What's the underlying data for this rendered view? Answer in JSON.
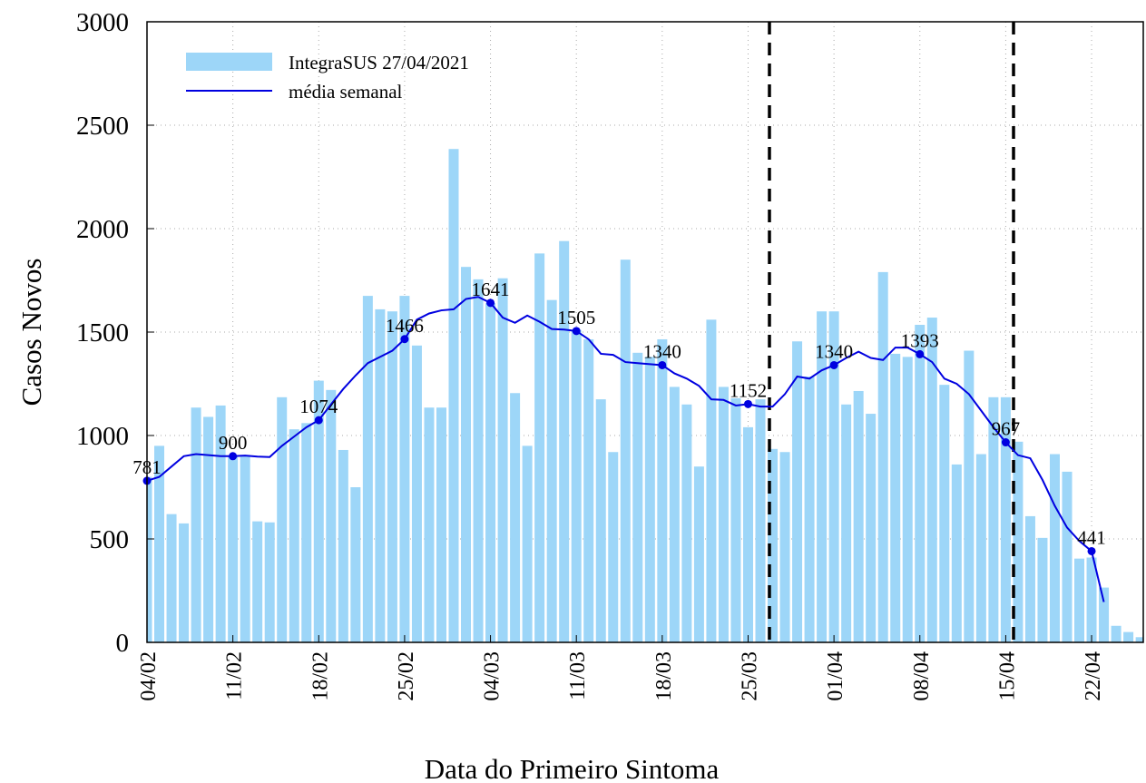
{
  "chart_data": {
    "type": "bar-line",
    "xlabel": "Data do Primeiro Sintoma",
    "ylabel": "Casos Novos",
    "categories": [
      "04/02",
      null,
      null,
      null,
      null,
      null,
      null,
      "11/02",
      null,
      null,
      null,
      null,
      null,
      null,
      "18/02",
      null,
      null,
      null,
      null,
      null,
      null,
      "25/02",
      null,
      null,
      null,
      null,
      null,
      null,
      "04/03",
      null,
      null,
      null,
      null,
      null,
      null,
      "11/03",
      null,
      null,
      null,
      null,
      null,
      null,
      "18/03",
      null,
      null,
      null,
      null,
      null,
      null,
      "25/03",
      null,
      null,
      null,
      null,
      null,
      null,
      "01/04",
      null,
      null,
      null,
      null,
      null,
      null,
      "08/04",
      null,
      null,
      null,
      null,
      null,
      null,
      "15/04",
      null,
      null,
      null,
      null,
      null,
      null,
      "22/04",
      null,
      null,
      null,
      null
    ],
    "series": [
      {
        "name": "IntegraSUS 27/04/2021",
        "kind": "bar",
        "color": "#9dd6f8",
        "values": [
          800,
          950,
          620,
          575,
          1135,
          1090,
          1145,
          900,
          905,
          585,
          580,
          1185,
          1030,
          1060,
          1265,
          1220,
          930,
          750,
          1675,
          1610,
          1600,
          1675,
          1435,
          1135,
          1135,
          2385,
          1815,
          1755,
          1640,
          1760,
          1205,
          950,
          1880,
          1655,
          1940,
          1510,
          1465,
          1175,
          920,
          1850,
          1400,
          1380,
          1465,
          1235,
          1150,
          850,
          1560,
          1235,
          1180,
          1040,
          1175,
          935,
          920,
          1455,
          1285,
          1600,
          1600,
          1150,
          1215,
          1105,
          1790,
          1395,
          1380,
          1535,
          1570,
          1245,
          860,
          1410,
          910,
          1185,
          1185,
          970,
          610,
          505,
          910,
          825,
          405,
          410,
          265,
          80,
          50,
          25
        ]
      },
      {
        "name": "média semanal",
        "kind": "line",
        "color": "#0000e0",
        "markevery": 7,
        "values": [
          781,
          800,
          850,
          900,
          910,
          905,
          900,
          900,
          903,
          898,
          896,
          950,
          995,
          1040,
          1074,
          1150,
          1225,
          1290,
          1350,
          1380,
          1410,
          1466,
          1560,
          1590,
          1605,
          1610,
          1660,
          1670,
          1641,
          1570,
          1545,
          1580,
          1550,
          1515,
          1512,
          1505,
          1465,
          1395,
          1390,
          1355,
          1350,
          1345,
          1340,
          1300,
          1275,
          1240,
          1175,
          1172,
          1145,
          1152,
          1140,
          1140,
          1200,
          1285,
          1275,
          1315,
          1340,
          1375,
          1405,
          1375,
          1365,
          1425,
          1425,
          1393,
          1355,
          1275,
          1250,
          1200,
          1120,
          1040,
          967,
          905,
          890,
          785,
          660,
          555,
          490,
          441,
          195,
          null,
          null,
          null
        ]
      }
    ],
    "ylim": [
      0,
      3000
    ],
    "yticks": [
      0,
      500,
      1000,
      1500,
      2000,
      2500,
      3000
    ],
    "grid": true
  }
}
